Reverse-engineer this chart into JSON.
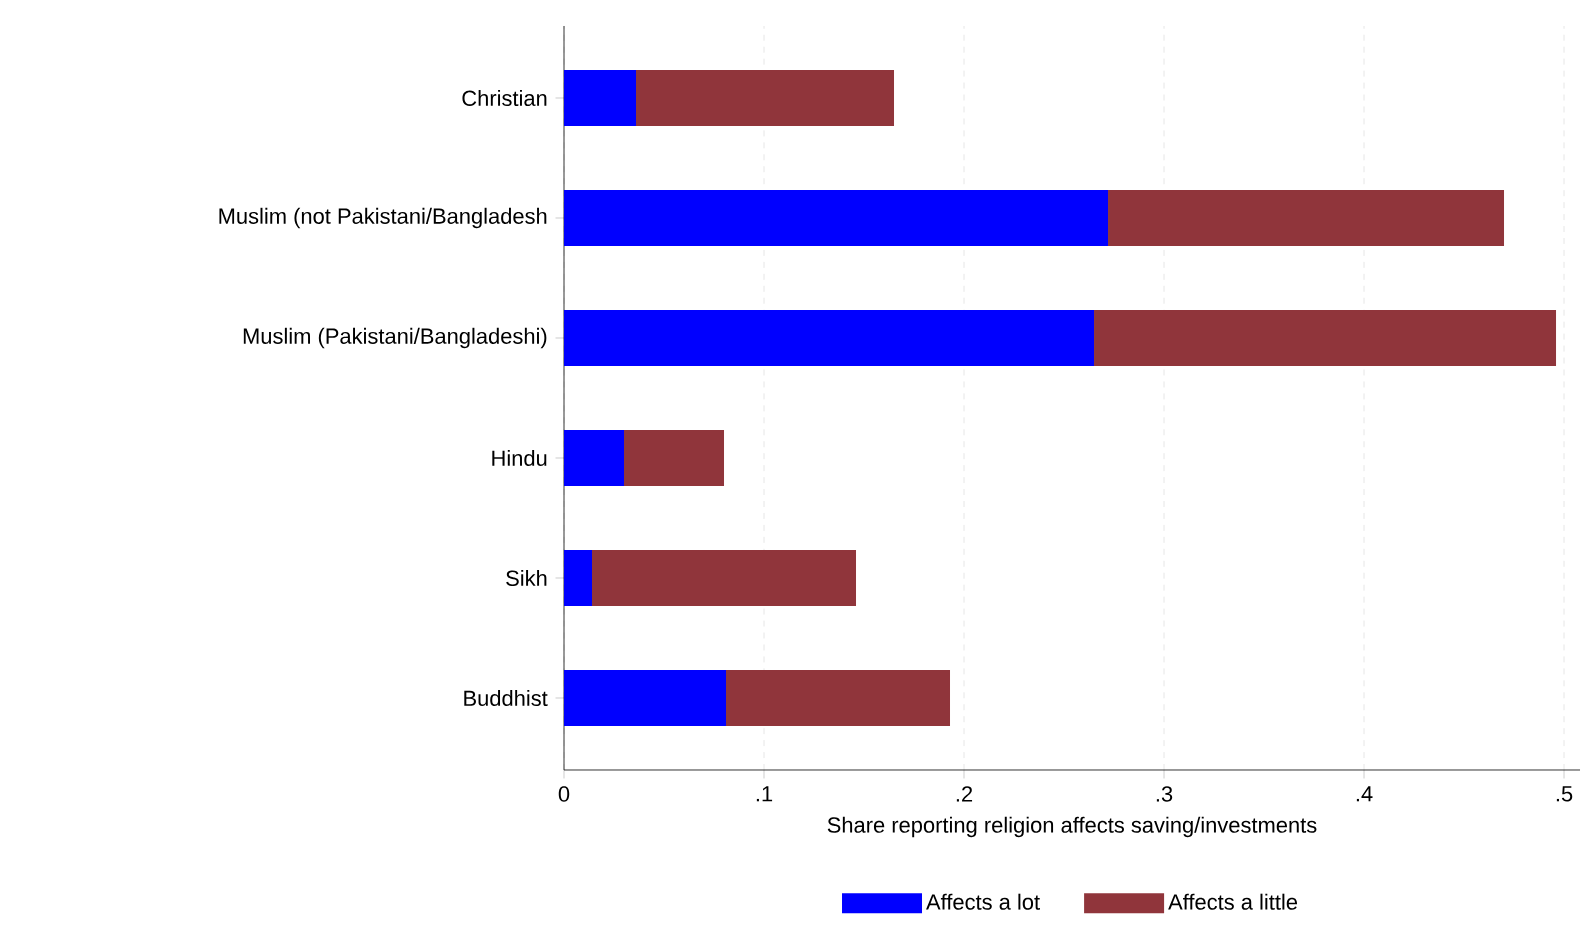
{
  "chart_data": {
    "type": "bar",
    "orientation": "horizontal",
    "stacked": true,
    "xlabel": "Share reporting religion affects saving/investments",
    "categories": [
      "Christian",
      "Muslim (not Pakistani/Bangladesh",
      "Muslim (Pakistani/Bangladeshi)",
      "Hindu",
      "Sikh",
      "Buddhist"
    ],
    "series": [
      {
        "name": "Affects a lot",
        "color": "#0000ff",
        "values": [
          0.036,
          0.272,
          0.265,
          0.03,
          0.014,
          0.081
        ]
      },
      {
        "name": "Affects a little",
        "color": "#90353b",
        "values": [
          0.129,
          0.198,
          0.231,
          0.05,
          0.132,
          0.112
        ]
      }
    ],
    "xlim": [
      0,
      0.508
    ],
    "xticks": [
      0,
      {
        "value": 0.1,
        "label": ".1"
      },
      {
        "value": 0.2,
        "label": ".2"
      },
      {
        "value": 0.3,
        "label": ".3"
      },
      {
        "value": 0.4,
        "label": ".4"
      },
      {
        "value": 0.5,
        "label": ".5"
      }
    ],
    "grid": "x",
    "legend": "bottom"
  }
}
